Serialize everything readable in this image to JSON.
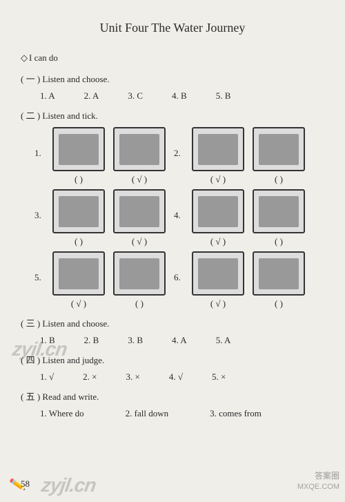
{
  "title": "Unit Four    The Water Journey",
  "subtitle": "I can do",
  "sections": {
    "s1": {
      "head": "( 一 ) Listen and choose.",
      "answers": [
        "1. A",
        "2. A",
        "3. C",
        "4. B",
        "5. B"
      ],
      "answer_gap": 42
    },
    "s2": {
      "head": "( 二 ) Listen and tick.",
      "rows": [
        {
          "num": "1.",
          "cells": [
            {
              "mark": "(     )"
            },
            {
              "mark": "( √ )"
            }
          ],
          "num2": "2.",
          "cells2": [
            {
              "mark": "( √ )"
            },
            {
              "mark": "(     )"
            }
          ]
        },
        {
          "num": "3.",
          "cells": [
            {
              "mark": "(     )"
            },
            {
              "mark": "( √ )"
            }
          ],
          "num2": "4.",
          "cells2": [
            {
              "mark": "( √ )"
            },
            {
              "mark": "(     )"
            }
          ]
        },
        {
          "num": "5.",
          "cells": [
            {
              "mark": "( √ )"
            },
            {
              "mark": "(     )"
            }
          ],
          "num2": "6.",
          "cells2": [
            {
              "mark": "( √ )"
            },
            {
              "mark": "(     )"
            }
          ]
        }
      ]
    },
    "s3": {
      "head": "( 三 ) Listen and choose.",
      "answers": [
        "1. B",
        "2. B",
        "3. B",
        "4. A",
        "5. A"
      ],
      "answer_gap": 42
    },
    "s4": {
      "head": "( 四 ) Listen and judge.",
      "answers": [
        "1. √",
        "2. ×",
        "3. ×",
        "4. √",
        "5. ×"
      ],
      "answer_gap": 42
    },
    "s5": {
      "head": "( 五 ) Read and write.",
      "answers": [
        "1. Where do",
        "2. fall down",
        "3. comes from"
      ],
      "answer_gap": 60
    }
  },
  "watermarks": {
    "wm1": "zyjl.cn",
    "wm2": "zyjl.cn",
    "wm3": "答案圈",
    "wm4": "MXQE.COM"
  },
  "page_number": "58"
}
